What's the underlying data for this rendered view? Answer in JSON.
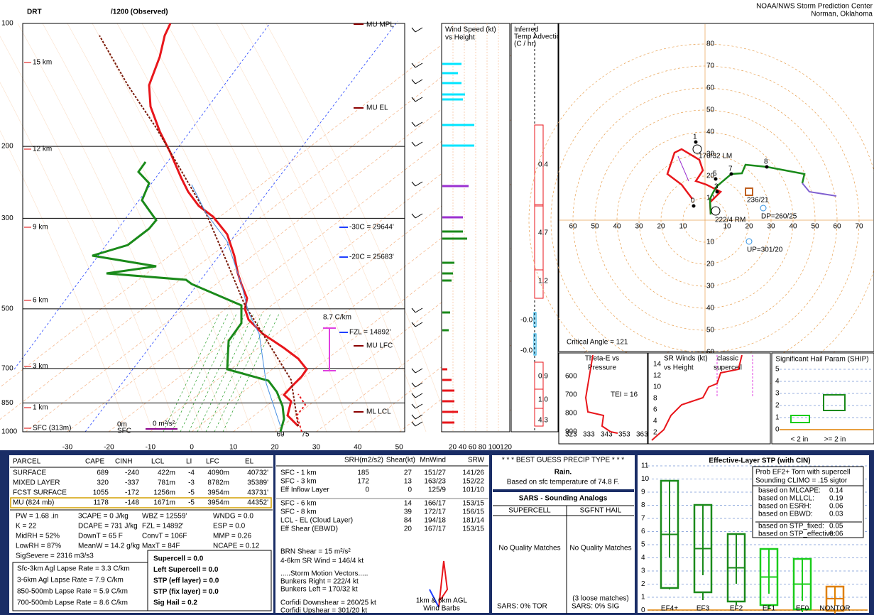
{
  "header": {
    "station": "DRT",
    "time": "/1200  (Observed)",
    "agency": "NOAA/NWS Storm Prediction Center",
    "location": "Norman, Oklahoma"
  },
  "skewt": {
    "pressure_labels": [
      "100",
      "200",
      "300",
      "500",
      "700",
      "850",
      "1000"
    ],
    "height_labels": [
      "15 km",
      "12 km",
      "9 km",
      "6 km",
      "3 km",
      "1 km",
      "SFC (313m)"
    ],
    "temp_labels": [
      "-30",
      "-20",
      "-10",
      "0",
      "10",
      "20",
      "30",
      "40",
      "50"
    ],
    "annotations": {
      "mu_mpl": "MU MPL",
      "mu_el": "MU EL",
      "minus30": "-30C = 29644'",
      "minus20": "-20C = 25683'",
      "fzl": "FZL = 14892'",
      "mu_lfc": "MU LFC",
      "ml_lcl": "ML LCL",
      "lapse": "8.7 C/km",
      "sfc_height": "0m",
      "sfc": "SFC",
      "sfc_srh": "0 m²/s²",
      "sfc_td": "69",
      "sfc_t": "75"
    }
  },
  "wind_speed": {
    "title": "Wind Speed (kt)",
    "subtitle": "vs Height",
    "ticks": "20 40 60 80 100120"
  },
  "temp_advection": {
    "title": [
      "Inferred",
      "Temp Advection",
      "(C / hr)"
    ],
    "values": [
      "0.4",
      "4.7",
      "1.2",
      "-0.0",
      "-0.0",
      "0.9",
      "1.0",
      "4.3"
    ]
  },
  "hodograph": {
    "ring_labels": [
      "80",
      "70",
      "60",
      "50",
      "40",
      "30",
      "20",
      "10"
    ],
    "lower_ring_labels": [
      "10",
      "20",
      "30",
      "40",
      "50",
      "60"
    ],
    "x_labels_left": [
      "60",
      "50",
      "40",
      "30",
      "20",
      "10"
    ],
    "x_labels_right": [
      "10",
      "20",
      "30",
      "40",
      "50",
      "60",
      "70"
    ],
    "points": [
      "0",
      "1",
      "3",
      "5",
      "7",
      "8"
    ],
    "lm": "170/32 LM",
    "rm": "222/4  RM",
    "mean": "236/21",
    "dp": "DP=260/25",
    "up": "UP=301/20",
    "critical_angle": "Critical Angle = 121"
  },
  "theta_e": {
    "title": "Theta-E vs",
    "subtitle": "Pressure",
    "y_labels": [
      "600",
      "700",
      "800",
      "900"
    ],
    "x_labels": [
      "323",
      "333",
      "343",
      "353",
      "363"
    ],
    "tei": "TEI = 16"
  },
  "sr_winds": {
    "title": "SR Winds (kt)",
    "subtitle": "vs Height",
    "classic": "classic",
    "supercell": "supercell",
    "y_labels": [
      "14",
      "12",
      "10",
      "8",
      "6",
      "4",
      "2"
    ]
  },
  "ship": {
    "title": "Significant Hail Param (SHIP)",
    "y_labels": [
      "5",
      "4",
      "3",
      "2",
      "1",
      "0"
    ],
    "x_labels": [
      "< 2 in",
      ">= 2 in"
    ]
  },
  "parcel_table": {
    "header": [
      "PARCEL",
      "CAPE",
      "CINH",
      "LCL",
      "LI",
      "LFC",
      "EL"
    ],
    "rows": [
      [
        "SURFACE",
        "689",
        "-240",
        "422m",
        "-4",
        "4090m",
        "40732'"
      ],
      [
        "MIXED LAYER",
        "320",
        "-337",
        "781m",
        "-3",
        "8782m",
        "35389'"
      ],
      [
        "FCST SURFACE",
        "1055",
        "-172",
        "1256m",
        "-5",
        "3954m",
        "43731'"
      ],
      [
        "MU  (824 mb)",
        "1178",
        "-148",
        "1671m",
        "-5",
        "3954m",
        "44352'"
      ]
    ],
    "indices": [
      [
        "PW = 1.68 .in",
        "3CAPE = 0 J/kg",
        "WBZ = 12559'",
        "WNDG = 0.0"
      ],
      [
        "K = 22",
        "DCAPE = 731 J/kg",
        "FZL = 14892'",
        "ESP = 0.0"
      ],
      [
        "MidRH = 52%",
        "DownT = 65 F",
        "ConvT = 106F",
        "MMP = 0.26"
      ],
      [
        "LowRH = 87%",
        "MeanW = 14.2 g/kg",
        "MaxT = 84F",
        "NCAPE = 0.12"
      ]
    ],
    "sigsevere": "SigSevere = 2316 m3/s3",
    "lapse_rates": [
      "Sfc-3km Agl Lapse Rate = 3.3 C/km",
      "3-6km Agl Lapse Rate = 7.9 C/km",
      "850-500mb Lapse Rate = 5.9 C/km",
      "700-500mb Lapse Rate = 8.6 C/km"
    ],
    "composites": [
      "Supercell = 0.0",
      "Left Supercell = 0.0",
      "STP (eff layer) = 0.0",
      "STP (fix layer) = 0.0",
      "Sig Hail = 0.2"
    ]
  },
  "kinematics": {
    "header": [
      "SRH(m2/s2)",
      "Shear(kt)",
      "MnWind",
      "SRW"
    ],
    "rows": [
      [
        "SFC - 1 km",
        "185",
        "27",
        "151/27",
        "141/26"
      ],
      [
        "SFC - 3 km",
        "172",
        "13",
        "163/23",
        "152/22"
      ],
      [
        "Eff Inflow Layer",
        "0",
        "0",
        "125/9",
        "101/10"
      ],
      [
        "SFC - 6 km",
        "14",
        "166/17",
        "153/15"
      ],
      [
        "SFC - 8 km",
        "39",
        "172/17",
        "156/15"
      ],
      [
        "LCL - EL (Cloud Layer)",
        "84",
        "194/18",
        "181/14"
      ],
      [
        "Eff Shear (EBWD)",
        "20",
        "167/17",
        "153/15"
      ]
    ],
    "brn": "BRN Shear = 15 m²/s²",
    "sr_wind": "4-6km SR Wind =            146/4 kt",
    "storm_motion": ".....Storm Motion Vectors.....",
    "vectors": [
      "Bunkers Right =          222/4 kt",
      "Bunkers Left =          170/32 kt",
      "Corfidi Downshear =   260/25 kt",
      "Corfidi Upshear =       301/20 kt"
    ],
    "barb_legend": [
      "1km & 6km AGL",
      "Wind Barbs"
    ]
  },
  "precip": {
    "title": "* * * BEST GUESS PRECIP TYPE * * *",
    "type": "Rain.",
    "note": "Based on sfc temperature of 74.8 F."
  },
  "sars": {
    "title": "SARS - Sounding Analogs",
    "columns": [
      "SUPERCELL",
      "SGFNT HAIL"
    ],
    "matches": [
      "No Quality Matches",
      "No Quality Matches"
    ],
    "loose": "(3 loose matches)",
    "results": [
      "SARS:  0% TOR",
      "SARS:  0% SIG"
    ]
  },
  "stp": {
    "title": "Effective-Layer STP (with CIN)",
    "prob": [
      "Prob EF2+ Torn with supercell",
      "Sounding CLIMO = .15 sigtor"
    ],
    "based_on": [
      [
        "based on MLCAPE:",
        "0.14"
      ],
      [
        "based on MLLCL:",
        "0.19"
      ],
      [
        "based on ESRH:",
        "0.06"
      ],
      [
        "based on EBWD:",
        "0.03"
      ],
      [
        "based on STP_fixed:",
        "0.05"
      ],
      [
        "based on STP_effective:",
        "0.06"
      ]
    ],
    "y_labels": [
      "11",
      "10",
      "9",
      "8",
      "7",
      "6",
      "5",
      "4",
      "3",
      "2",
      "1",
      "0"
    ],
    "x_labels": [
      "EF4+",
      "EF3",
      "EF2",
      "EF1",
      "EF0",
      "NONTOR"
    ]
  }
}
